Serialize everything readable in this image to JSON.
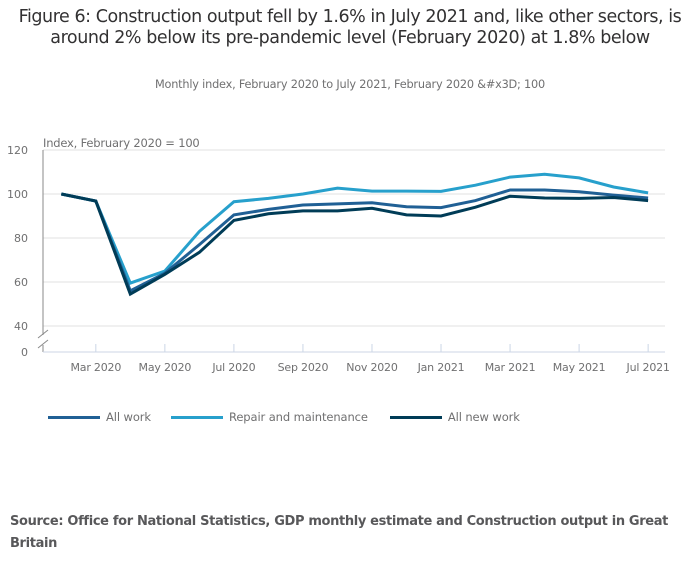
{
  "title": "Figure 6: Construction output fell by 1.6% in July 2021 and, like other sectors, is around 2% below its pre-pandemic level (February 2020) at 1.8% below",
  "subtitle": "Monthly index, February 2020 to July 2021, February 2020 &#x3D; 100",
  "source": "Source: Office for National Statistics, GDP monthly estimate and Construction output in Great Britain",
  "chart_data": {
    "type": "line",
    "title": "Figure 6: Construction output fell by 1.6% in July 2021 and, like other sectors, is around 2% below its pre-pandemic level (February 2020) at 1.8% below",
    "subtitle": "Monthly index, February 2020 to July 2021, February 2020 &#x3D; 100",
    "xlabel": "",
    "ylabel": "Index, February 2020 = 100",
    "x": [
      "Feb 2020",
      "Mar 2020",
      "Apr 2020",
      "May 2020",
      "Jun 2020",
      "Jul 2020",
      "Aug 2020",
      "Sep 2020",
      "Oct 2020",
      "Nov 2020",
      "Dec 2020",
      "Jan 2021",
      "Feb 2021",
      "Mar 2021",
      "Apr 2021",
      "May 2021",
      "Jun 2021",
      "Jul 2021"
    ],
    "x_tick_labels": [
      "Mar 2020",
      "May 2020",
      "Jul 2020",
      "Sep 2020",
      "Nov 2020",
      "Jan 2021",
      "Mar 2021",
      "May 2021",
      "Jul 2021"
    ],
    "y_tick_labels": [
      "120",
      "100",
      "80",
      "60",
      "40",
      "0"
    ],
    "yticks": [
      120,
      100,
      80,
      60,
      40,
      0
    ],
    "ylim": [
      0,
      120
    ],
    "y_axis_break": [
      0,
      40
    ],
    "grid": "horizontal",
    "legend_position": "bottom-left",
    "series": [
      {
        "name": "All work",
        "color": "#206095",
        "values": [
          100,
          96.8,
          56.0,
          64.0,
          77.0,
          90.5,
          93.0,
          95.0,
          95.5,
          96.0,
          94.2,
          93.8,
          97.0,
          101.8,
          101.8,
          101.0,
          99.5,
          98.2
        ]
      },
      {
        "name": "Repair and maintenance",
        "color": "#27a0cc",
        "values": [
          100,
          96.8,
          59.5,
          65.0,
          83.0,
          96.5,
          98.0,
          100.0,
          102.7,
          101.3,
          101.3,
          101.2,
          104.0,
          107.7,
          109.0,
          107.3,
          103.2,
          100.5
        ]
      },
      {
        "name": "All new work",
        "color": "#003c57",
        "values": [
          100,
          96.8,
          54.5,
          63.5,
          73.5,
          88.0,
          91.0,
          92.3,
          92.3,
          93.5,
          90.5,
          90.0,
          94.0,
          99.0,
          98.2,
          98.0,
          98.4,
          97.0
        ]
      }
    ]
  }
}
